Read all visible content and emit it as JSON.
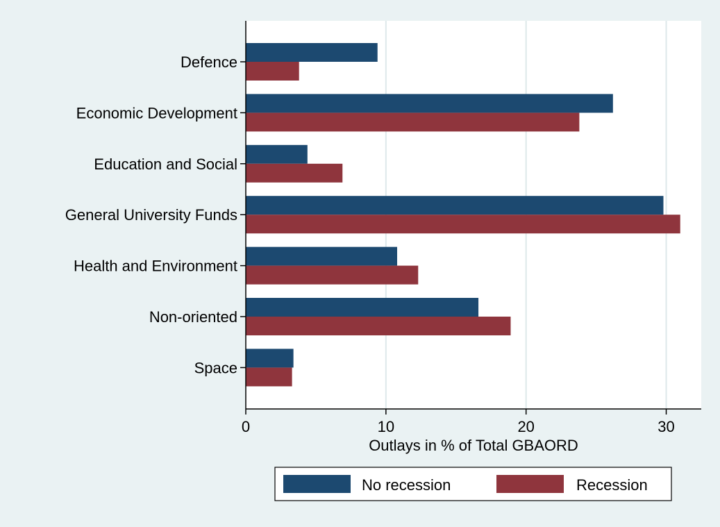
{
  "chart_data": {
    "type": "bar",
    "orientation": "horizontal",
    "title": "",
    "xlabel": "Outlays in % of Total GBAORD",
    "ylabel": "",
    "xlim": [
      0,
      32.5
    ],
    "x_ticks": [
      "0",
      "10",
      "20",
      "30"
    ],
    "grid": true,
    "legend_position": "bottom",
    "categories": [
      "Defence",
      "Economic Development",
      "Education and Social",
      "General University Funds",
      "Health and Environment",
      "Non-oriented",
      "Space"
    ],
    "series": [
      {
        "name": "No recession",
        "color": "#1c4970",
        "values": [
          9.4,
          26.2,
          4.4,
          29.8,
          10.8,
          16.6,
          3.4
        ]
      },
      {
        "name": "Recession",
        "color": "#8f353d",
        "values": [
          3.8,
          23.8,
          6.9,
          31.0,
          12.3,
          18.9,
          3.3
        ]
      }
    ]
  }
}
